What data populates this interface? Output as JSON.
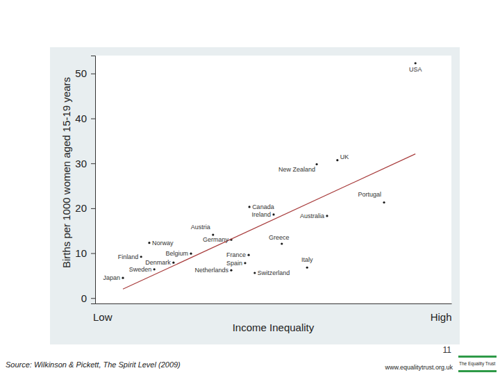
{
  "chart_data": {
    "type": "scatter",
    "x_label": "Income Inequality",
    "y_label": "Births per 1000 women aged 15-19 years",
    "xlim": [
      0,
      100
    ],
    "xticks": [
      {
        "value": 2,
        "label": "Low"
      },
      {
        "value": 97,
        "label": "High"
      }
    ],
    "ylim": [
      -1.2,
      54
    ],
    "yticks": [
      0,
      10,
      20,
      30,
      40,
      50
    ],
    "grid": false,
    "series": [
      {
        "type": "scatter",
        "color": "#1a1a1a",
        "marker": "circle",
        "labels": [
          "USA",
          "UK",
          "New Zealand",
          "Portugal",
          "Canada",
          "Ireland",
          "Australia",
          "Austria",
          "Germany",
          "Norway",
          "Belgium",
          "Finland",
          "Denmark",
          "Sweden",
          "Japan",
          "Netherlands",
          "France",
          "Spain",
          "Greece",
          "Switzerland",
          "Italy"
        ],
        "x": [
          89.9,
          68.0,
          62.2,
          81.1,
          43.3,
          50.1,
          65.1,
          33.1,
          38.2,
          15.2,
          26.9,
          12.9,
          22.0,
          16.6,
          7.8,
          38.2,
          43.1,
          42.1,
          52.4,
          44.8,
          59.5
        ],
        "values": [
          52.3,
          30.7,
          29.8,
          21.3,
          20.3,
          18.6,
          18.3,
          14.1,
          13.0,
          12.3,
          9.9,
          9.2,
          7.9,
          6.4,
          4.5,
          6.2,
          9.6,
          7.8,
          12.1,
          5.6,
          6.8
        ]
      },
      {
        "type": "line",
        "color": "#a83c3c",
        "line_style": "solid",
        "x": [
          7.8,
          89.9
        ],
        "values": [
          2.0,
          32.1
        ]
      }
    ],
    "page_number": "11",
    "source": "Source: Wilkinson & Pickett, The Spirit Level (2009)",
    "website": "www.equalitytrust.org.uk",
    "logo": "The Equality Trust"
  }
}
